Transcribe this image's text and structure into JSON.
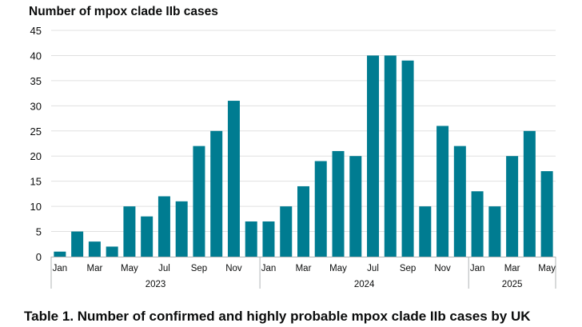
{
  "chart_data": {
    "type": "bar",
    "title": "Number of mpox clade IIb cases",
    "xlabel": "",
    "ylabel": "",
    "ylim": [
      0,
      45
    ],
    "yticks": [
      0,
      5,
      10,
      15,
      20,
      25,
      30,
      35,
      40,
      45
    ],
    "grid": true,
    "bar_color": "#007c91",
    "categories": [
      "Jan 2023",
      "Feb 2023",
      "Mar 2023",
      "Apr 2023",
      "May 2023",
      "Jun 2023",
      "Jul 2023",
      "Aug 2023",
      "Sep 2023",
      "Oct 2023",
      "Nov 2023",
      "Dec 2023",
      "Jan 2024",
      "Feb 2024",
      "Mar 2024",
      "Apr 2024",
      "May 2024",
      "Jun 2024",
      "Jul 2024",
      "Aug 2024",
      "Sep 2024",
      "Oct 2024",
      "Nov 2024",
      "Dec 2024",
      "Jan 2025",
      "Feb 2025",
      "Mar 2025",
      "Apr 2025",
      "May 2025"
    ],
    "values": [
      1,
      5,
      3,
      2,
      10,
      8,
      12,
      11,
      22,
      25,
      31,
      7,
      7,
      10,
      14,
      19,
      21,
      20,
      40,
      40,
      39,
      10,
      26,
      22,
      13,
      10,
      20,
      25,
      17
    ],
    "month_tick_labels": [
      "Jan",
      "",
      "Mar",
      "",
      "May",
      "",
      "Jul",
      "",
      "Sep",
      "",
      "Nov",
      "",
      "Jan",
      "",
      "Mar",
      "",
      "May",
      "",
      "Jul",
      "",
      "Sep",
      "",
      "Nov",
      "",
      "Jan",
      "",
      "Mar",
      "",
      "May"
    ],
    "year_groups": [
      {
        "label": "2023",
        "start": 0,
        "end": 11
      },
      {
        "label": "2024",
        "start": 12,
        "end": 23
      },
      {
        "label": "2025",
        "start": 24,
        "end": 28
      }
    ]
  },
  "caption": "Table 1. Number of confirmed and highly probable mpox clade IIb cases by UK"
}
